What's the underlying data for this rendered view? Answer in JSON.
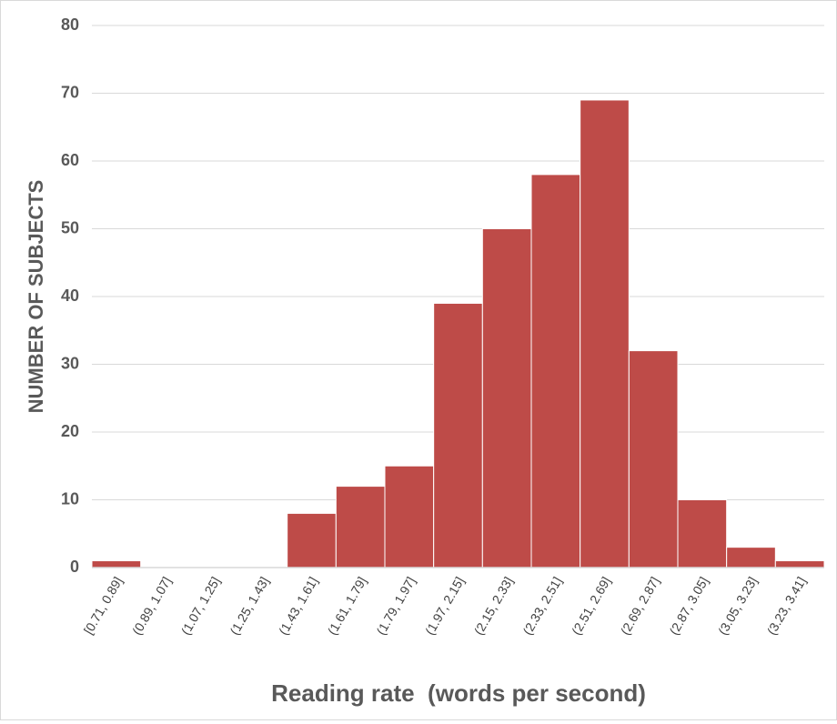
{
  "chart_data": {
    "type": "bar",
    "title": "",
    "xlabel": "Reading rate  (words per second)",
    "ylabel": "NUMBER OF SUBJECTS",
    "ylim": [
      0,
      80
    ],
    "yticks": [
      0,
      10,
      20,
      30,
      40,
      50,
      60,
      70,
      80
    ],
    "grid": true,
    "legend": "none",
    "bar_color": "#be4b48",
    "categories": [
      "[0.71, 0.89]",
      "(0.89, 1.07]",
      "(1.07, 1.25]",
      "(1.25, 1.43]",
      "(1.43, 1.61]",
      "(1.61, 1.79]",
      "(1.79, 1.97]",
      "(1.97, 2.15]",
      "(2.15, 2.33]",
      "(2.33, 2.51]",
      "(2.51, 2.69]",
      "(2.69, 2.87]",
      "(2.87, 3.05]",
      "(3.05, 3.23]",
      "(3.23, 3.41]"
    ],
    "values": [
      1,
      0,
      0,
      0,
      8,
      12,
      15,
      39,
      50,
      58,
      69,
      32,
      10,
      3,
      1
    ]
  }
}
